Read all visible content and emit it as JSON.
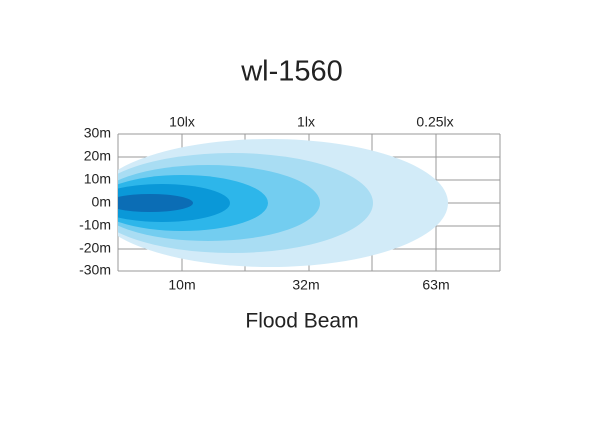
{
  "title": "wl-1560",
  "y_labels": [
    "30m",
    "20m",
    "10m",
    "0m",
    "-10m",
    "-20m",
    "-30m"
  ],
  "top_labels": [
    "10lx",
    "1lx",
    "0.25lx"
  ],
  "bottom_labels": [
    "10m",
    "32m",
    "63m"
  ],
  "caption": "Flood Beam"
}
